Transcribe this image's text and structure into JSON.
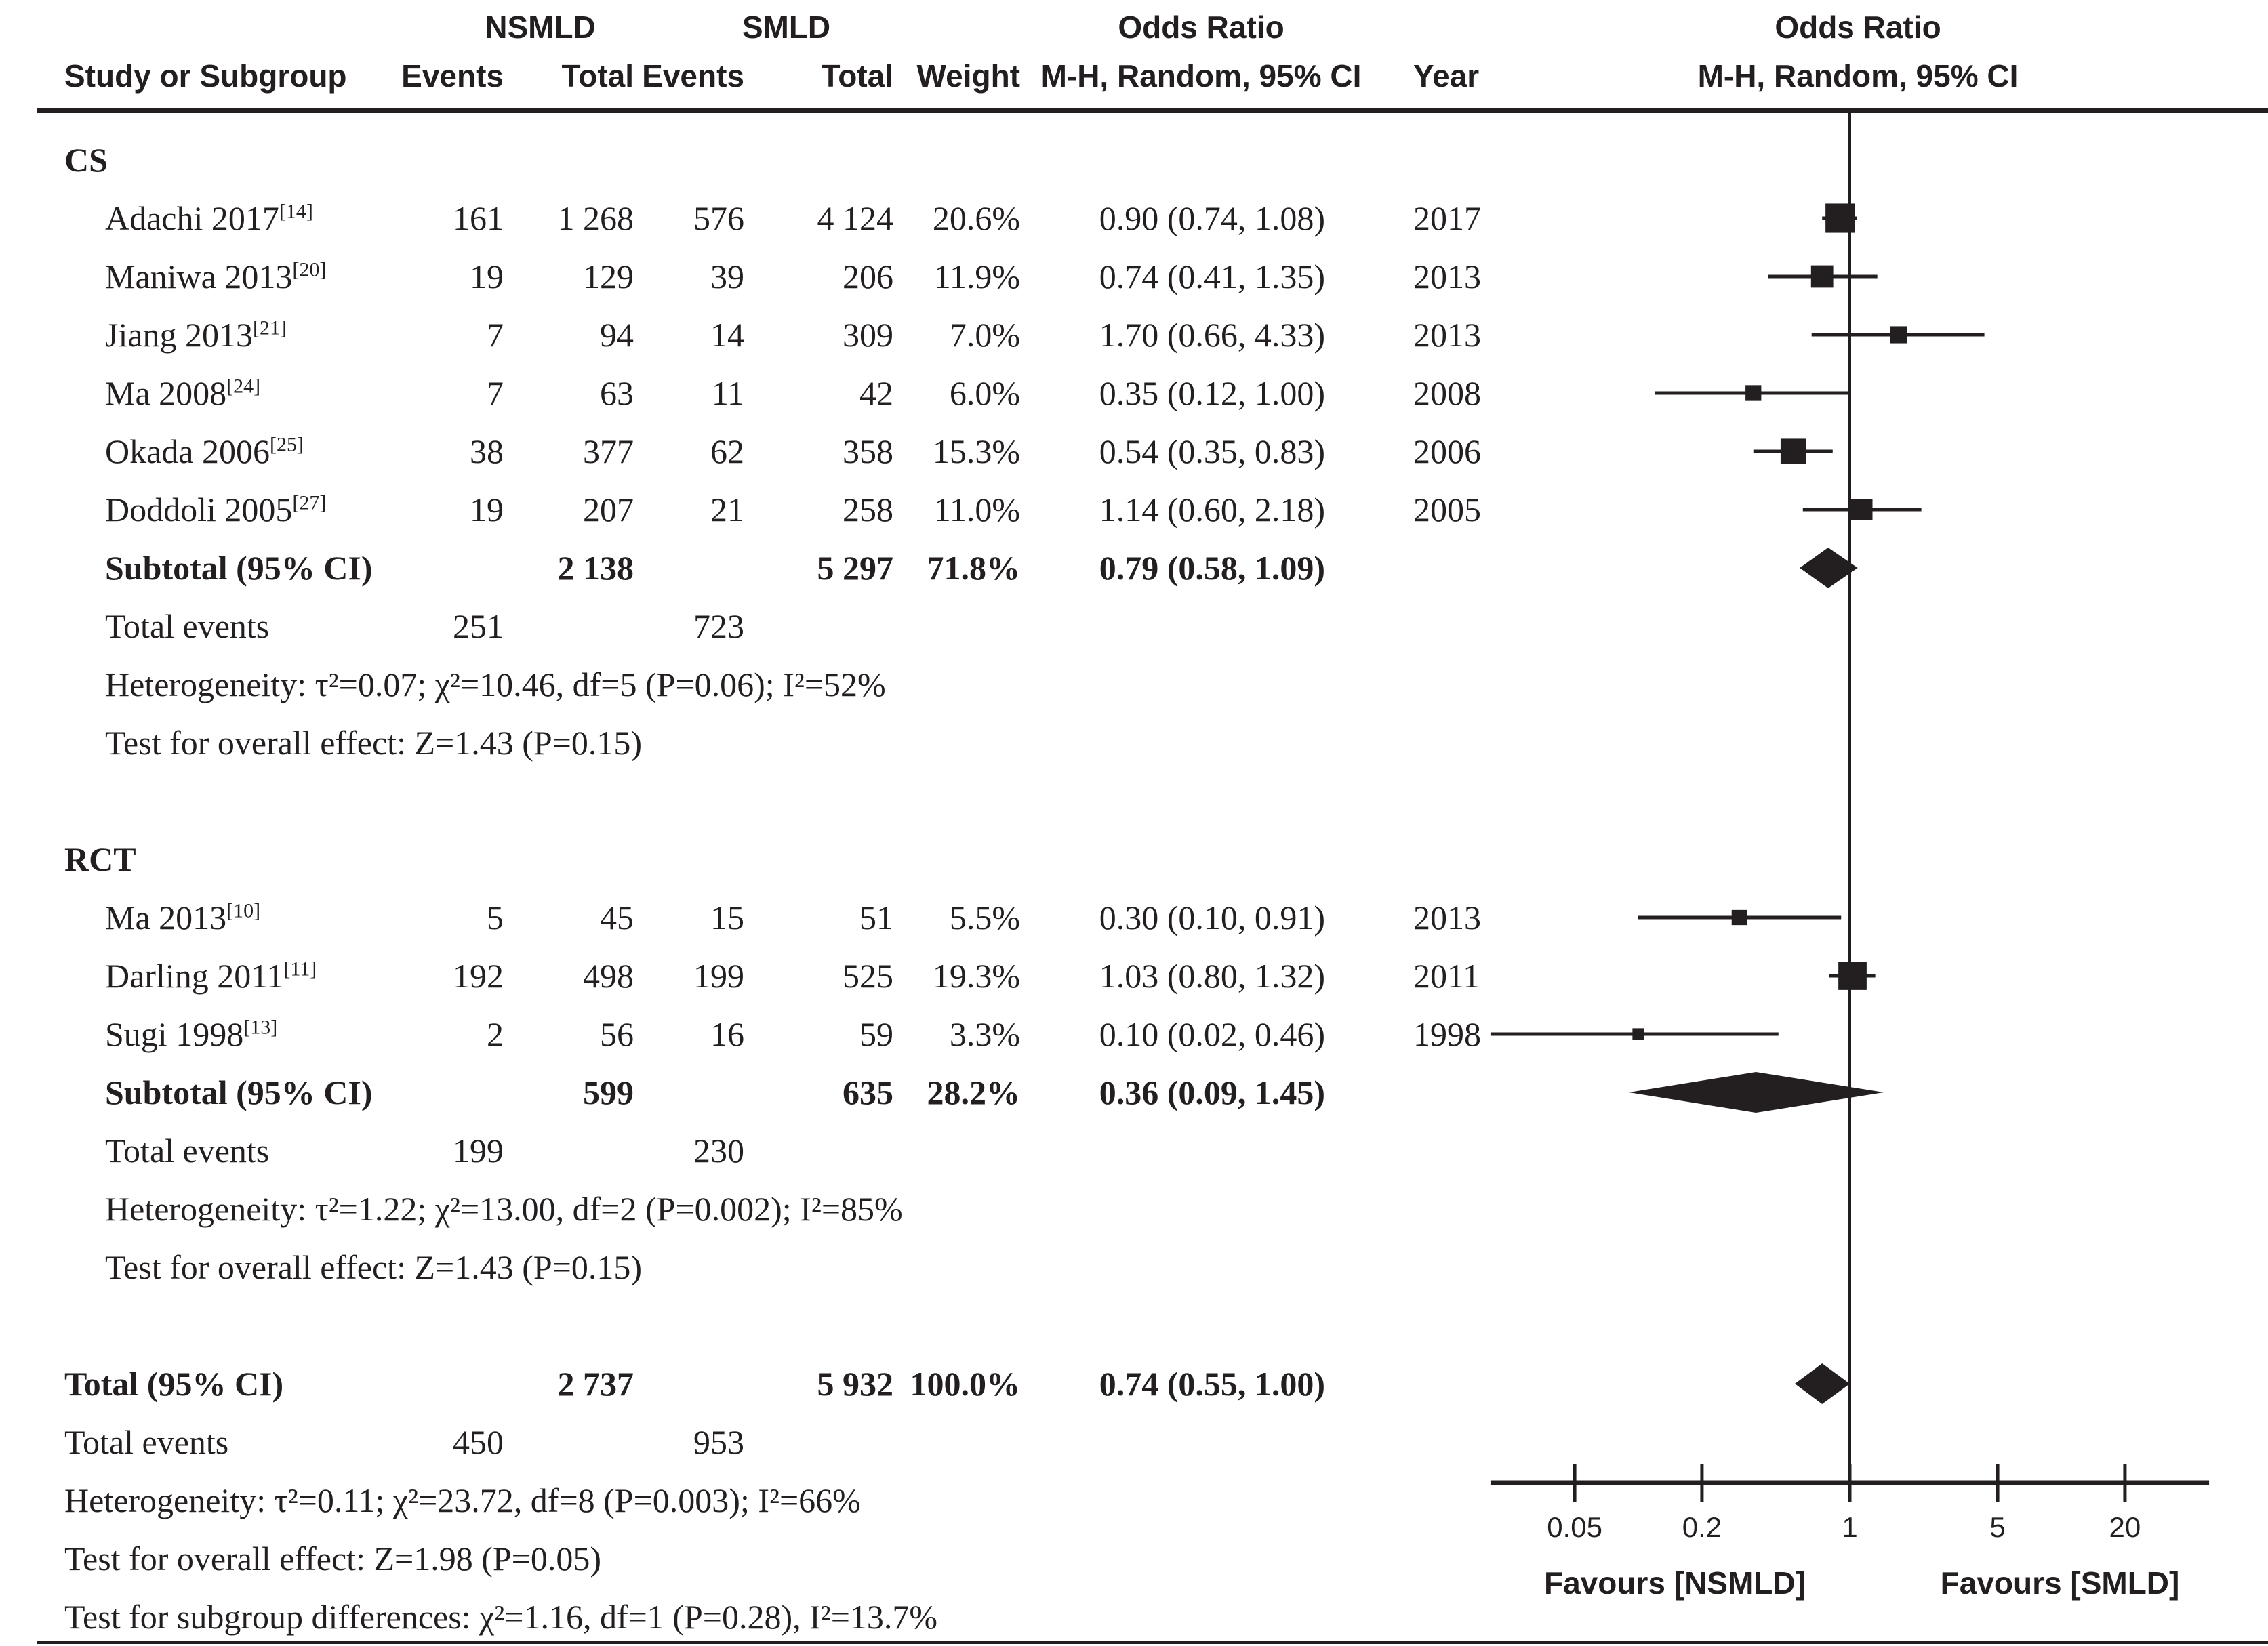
{
  "header": {
    "group_nsmld": "NSMLD",
    "group_smld": "SMLD",
    "or_left_title": "Odds Ratio",
    "or_left_sub": "M-H, Random, 95% CI",
    "or_right_title": "Odds Ratio",
    "or_right_sub": "M-H, Random, 95% CI",
    "study": "Study or Subgroup",
    "events1": "Events",
    "total1": "Total",
    "events2": "Events",
    "total2": "Total",
    "weight": "Weight",
    "year": "Year"
  },
  "chart_data": {
    "type": "forest",
    "scale": "log",
    "effect_measure": "Odds Ratio, M-H, Random, 95% CI",
    "axis": {
      "tick_values": [
        0.05,
        0.2,
        1,
        5,
        20
      ],
      "tick_labels": [
        "0.05",
        "0.2",
        "1",
        "5",
        "20"
      ],
      "min": 0.02,
      "max": 50,
      "no_effect": 1,
      "favours_left": "Favours [NSMLD]",
      "favours_right": "Favours [SMLD]"
    },
    "groups": [
      {
        "label": "CS",
        "studies": [
          {
            "study": "Adachi 2017",
            "ref": "[14]",
            "events1": "161",
            "total1": "1 268",
            "events2": "576",
            "total2": "4 124",
            "weight": "20.6%",
            "weight_value": 20.6,
            "or": 0.9,
            "ci_low": 0.74,
            "ci_high": 1.08,
            "or_text": "0.90 (0.74, 1.08)",
            "year": "2017"
          },
          {
            "study": "Maniwa 2013",
            "ref": "[20]",
            "events1": "19",
            "total1": "129",
            "events2": "39",
            "total2": "206",
            "weight": "11.9%",
            "weight_value": 11.9,
            "or": 0.74,
            "ci_low": 0.41,
            "ci_high": 1.35,
            "or_text": "0.74 (0.41, 1.35)",
            "year": "2013"
          },
          {
            "study": "Jiang 2013",
            "ref": "[21]",
            "events1": "7",
            "total1": "94",
            "events2": "14",
            "total2": "309",
            "weight": "7.0%",
            "weight_value": 7.0,
            "or": 1.7,
            "ci_low": 0.66,
            "ci_high": 4.33,
            "or_text": "1.70 (0.66, 4.33)",
            "year": "2013"
          },
          {
            "study": "Ma 2008",
            "ref": "[24]",
            "events1": "7",
            "total1": "63",
            "events2": "11",
            "total2": "42",
            "weight": "6.0%",
            "weight_value": 6.0,
            "or": 0.35,
            "ci_low": 0.12,
            "ci_high": 1.0,
            "or_text": "0.35 (0.12, 1.00)",
            "year": "2008"
          },
          {
            "study": "Okada 2006",
            "ref": "[25]",
            "events1": "38",
            "total1": "377",
            "events2": "62",
            "total2": "358",
            "weight": "15.3%",
            "weight_value": 15.3,
            "or": 0.54,
            "ci_low": 0.35,
            "ci_high": 0.83,
            "or_text": "0.54 (0.35, 0.83)",
            "year": "2006"
          },
          {
            "study": "Doddoli 2005",
            "ref": "[27]",
            "events1": "19",
            "total1": "207",
            "events2": "21",
            "total2": "258",
            "weight": "11.0%",
            "weight_value": 11.0,
            "or": 1.14,
            "ci_low": 0.6,
            "ci_high": 2.18,
            "or_text": "1.14 (0.60, 2.18)",
            "year": "2005"
          }
        ],
        "subtotal": {
          "label": "Subtotal (95% CI)",
          "total1": "2 138",
          "total2": "5 297",
          "weight": "71.8%",
          "or": 0.79,
          "ci_low": 0.58,
          "ci_high": 1.09,
          "or_text": "0.79 (0.58, 1.09)"
        },
        "total_events": {
          "label": "Total events",
          "events1": "251",
          "events2": "723"
        },
        "heterogeneity": "Heterogeneity: τ²=0.07; χ²=10.46, df=5 (P=0.06); I²=52%",
        "overall_effect": "Test for overall effect: Z=1.43 (P=0.15)"
      },
      {
        "label": "RCT",
        "studies": [
          {
            "study": "Ma 2013",
            "ref": "[10]",
            "events1": "5",
            "total1": "45",
            "events2": "15",
            "total2": "51",
            "weight": "5.5%",
            "weight_value": 5.5,
            "or": 0.3,
            "ci_low": 0.1,
            "ci_high": 0.91,
            "or_text": "0.30 (0.10, 0.91)",
            "year": "2013"
          },
          {
            "study": "Darling 2011",
            "ref": "[11]",
            "events1": "192",
            "total1": "498",
            "events2": "199",
            "total2": "525",
            "weight": "19.3%",
            "weight_value": 19.3,
            "or": 1.03,
            "ci_low": 0.8,
            "ci_high": 1.32,
            "or_text": "1.03 (0.80, 1.32)",
            "year": "2011"
          },
          {
            "study": "Sugi 1998",
            "ref": "[13]",
            "events1": "2",
            "total1": "56",
            "events2": "16",
            "total2": "59",
            "weight": "3.3%",
            "weight_value": 3.3,
            "or": 0.1,
            "ci_low": 0.02,
            "ci_high": 0.46,
            "or_text": "0.10 (0.02, 0.46)",
            "year": "1998"
          }
        ],
        "subtotal": {
          "label": "Subtotal (95% CI)",
          "total1": "599",
          "total2": "635",
          "weight": "28.2%",
          "or": 0.36,
          "ci_low": 0.09,
          "ci_high": 1.45,
          "or_text": "0.36 (0.09, 1.45)"
        },
        "total_events": {
          "label": "Total events",
          "events1": "199",
          "events2": "230"
        },
        "heterogeneity": "Heterogeneity: τ²=1.22; χ²=13.00, df=2 (P=0.002); I²=85%",
        "overall_effect": "Test for overall effect: Z=1.43 (P=0.15)"
      }
    ],
    "total": {
      "row": {
        "label": "Total (95% CI)",
        "total1": "2 737",
        "total2": "5 932",
        "weight": "100.0%",
        "or": 0.74,
        "ci_low": 0.55,
        "ci_high": 1.0,
        "or_text": "0.74 (0.55, 1.00)"
      },
      "total_events": {
        "label": "Total events",
        "events1": "450",
        "events2": "953"
      },
      "heterogeneity": "Heterogeneity: τ²=0.11; χ²=23.72, df=8 (P=0.003); I²=66%",
      "overall_effect": "Test for overall effect: Z=1.98 (P=0.05)",
      "subgroup_differences": "Test for subgroup differences: χ²=1.16, df=1 (P=0.28), I²=13.7%"
    }
  }
}
